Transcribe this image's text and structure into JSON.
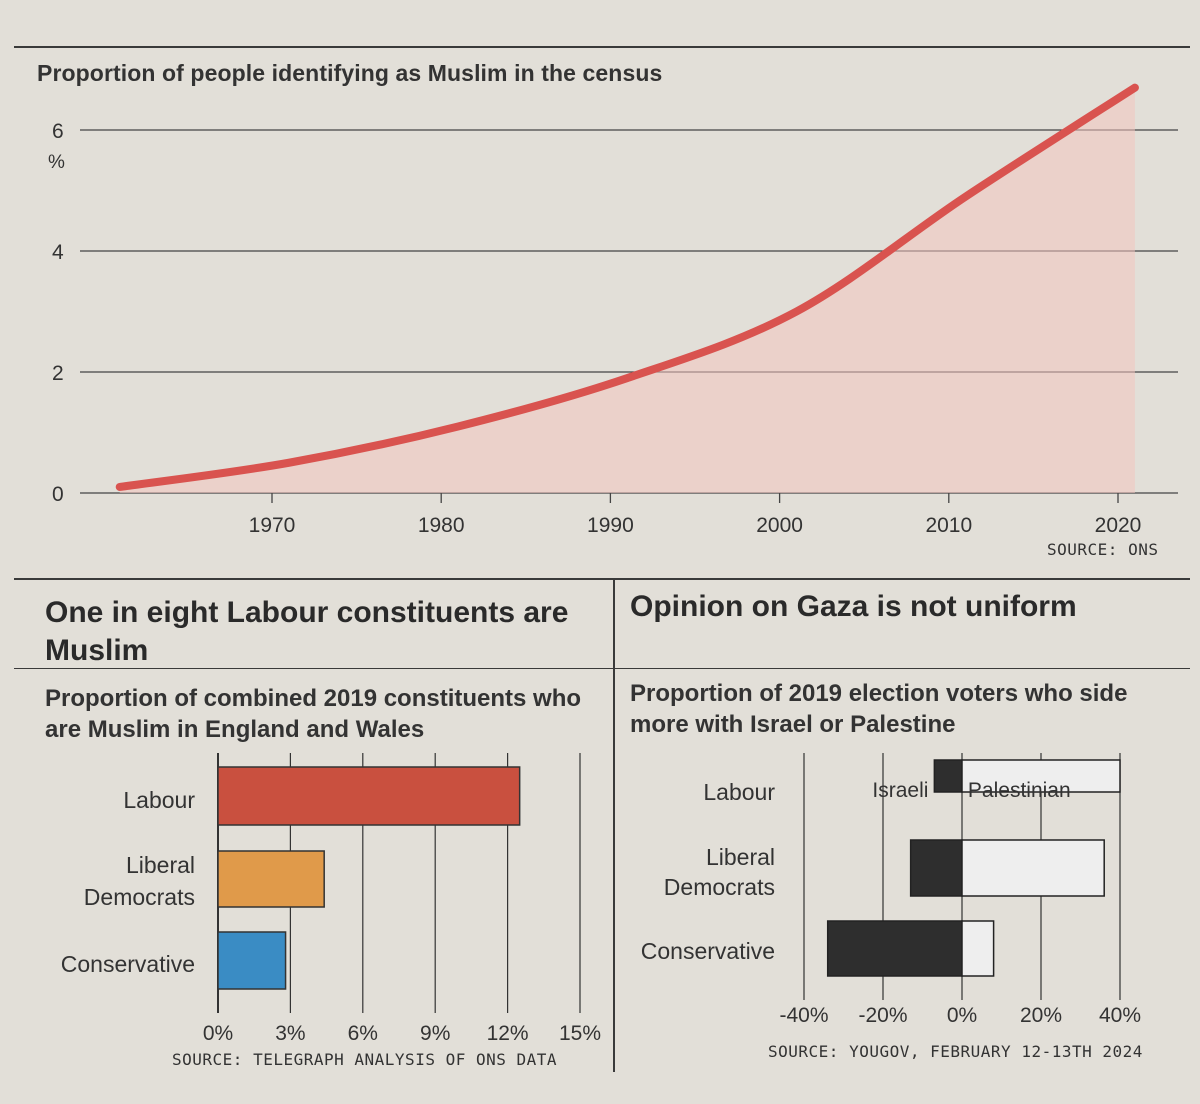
{
  "top_chart": {
    "title": "Proportion of people identifying as Muslim in the census",
    "unit": "%",
    "source": "SOURCE: ONS"
  },
  "left_panel": {
    "headline": "One in eight Labour constituents are Muslim",
    "subtitle": "Proportion of combined 2019 constituents who are Muslim in England and Wales",
    "source": "SOURCE: TELEGRAPH ANALYSIS OF ONS DATA"
  },
  "right_panel": {
    "headline": "Opinion on Gaza is not uniform",
    "subtitle": "Proportion of 2019 election voters who side more with Israel or Palestine",
    "source": "SOURCE: YOUGOV, FEBRUARY 12-13TH 2024"
  },
  "colors": {
    "line": "#d9534f",
    "area": "#f2c4c0",
    "labour": "#c9503f",
    "libdem": "#e09a4a",
    "conservative": "#3a8cc4",
    "israeli": "#2e2e2e",
    "palestinian": "#eeeeee"
  },
  "chart_data": [
    {
      "type": "area",
      "title": "Proportion of people identifying as Muslim in the census",
      "xlabel": "",
      "ylabel": "%",
      "x": [
        1961,
        1971,
        1981,
        1991,
        2001,
        2011,
        2021
      ],
      "values": [
        0.1,
        0.5,
        1.1,
        1.9,
        3.0,
        4.9,
        6.7
      ],
      "xlim": [
        1960,
        2022
      ],
      "ylim": [
        0,
        6.7
      ],
      "xticks": [
        "1970",
        "1980",
        "1990",
        "2000",
        "2010",
        "2020"
      ],
      "yticks": [
        "0",
        "2",
        "4",
        "6"
      ],
      "grid": true
    },
    {
      "type": "bar",
      "orientation": "horizontal",
      "title": "Proportion of combined 2019 constituents who are Muslim in England and Wales",
      "categories": [
        "Labour",
        "Liberal Democrats",
        "Conservative"
      ],
      "values": [
        12.5,
        4.4,
        2.8
      ],
      "xlim": [
        0,
        15
      ],
      "xticks": [
        "0%",
        "3%",
        "6%",
        "9%",
        "12%",
        "15%"
      ],
      "grid": true
    },
    {
      "type": "bar",
      "orientation": "horizontal-diverging",
      "title": "Proportion of 2019 election voters who side more with Israel or Palestine",
      "categories": [
        "Labour",
        "Liberal Democrats",
        "Conservative"
      ],
      "series": [
        {
          "name": "Israeli",
          "values": [
            -7,
            -13,
            -34
          ]
        },
        {
          "name": "Palestinian",
          "values": [
            40,
            36,
            8
          ]
        }
      ],
      "xlim": [
        -40,
        40
      ],
      "xticks": [
        "-40%",
        "-20%",
        "0%",
        "20%",
        "40%"
      ],
      "grid": true
    }
  ]
}
